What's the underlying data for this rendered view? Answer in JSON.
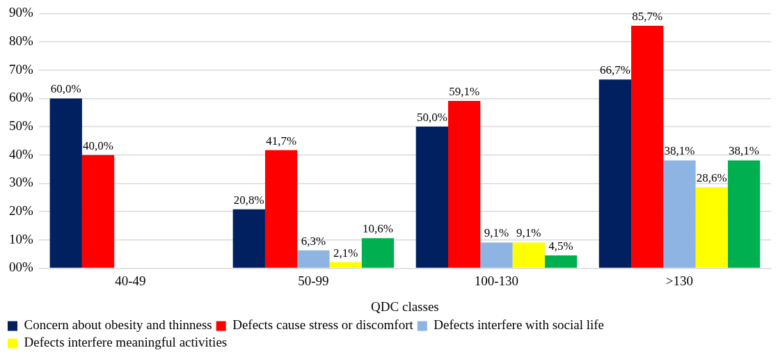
{
  "chart_data": {
    "type": "bar",
    "xlabel": "QDC classes",
    "categories": [
      "40-49",
      "50-99",
      "100-130",
      ">130"
    ],
    "series": [
      {
        "name": "Concern about obesity and thinness",
        "color": "#002060",
        "values": [
          60.0,
          20.8,
          50.0,
          66.7
        ],
        "value_labels": [
          "60,0%",
          "20,8%",
          "50,0%",
          "66,7%"
        ]
      },
      {
        "name": "Defects cause stress or discomfort",
        "color": "#ff0000",
        "values": [
          40.0,
          41.7,
          59.1,
          85.7
        ],
        "value_labels": [
          "40,0%",
          "41,7%",
          "59,1%",
          "85,7%"
        ]
      },
      {
        "name": "Defects interfere with social life",
        "color": "#8eb4e3",
        "values": [
          null,
          6.3,
          9.1,
          38.1
        ],
        "value_labels": [
          null,
          "6,3%",
          "9,1%",
          "38,1%"
        ]
      },
      {
        "name": "Defects interfere meaningful activities",
        "color": "#ffff00",
        "values": [
          null,
          2.1,
          9.1,
          28.6
        ],
        "value_labels": [
          null,
          "2,1%",
          "9,1%",
          "28,6%"
        ]
      },
      {
        "color": "#00b050",
        "values": [
          null,
          10.6,
          4.5,
          38.1
        ],
        "value_labels": [
          null,
          "10,6%",
          "4,5%",
          "38,1%"
        ]
      }
    ],
    "ylim": [
      0,
      90
    ],
    "yticks": [
      {
        "value": 0,
        "label": "00%"
      },
      {
        "value": 10,
        "label": "10%"
      },
      {
        "value": 20,
        "label": "20%"
      },
      {
        "value": 30,
        "label": "30%"
      },
      {
        "value": 40,
        "label": "40%"
      },
      {
        "value": 50,
        "label": "50%"
      },
      {
        "value": 60,
        "label": "60%"
      },
      {
        "value": 70,
        "label": "70%"
      },
      {
        "value": 80,
        "label": "80%"
      },
      {
        "value": 90,
        "label": "90%"
      }
    ],
    "grid": "y",
    "legend": "bottom"
  }
}
